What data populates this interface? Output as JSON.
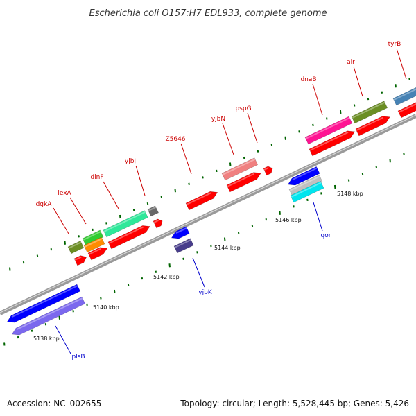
{
  "title": "Escherichia coli O157:H7 EDL933, complete genome",
  "footer": {
    "accession": "Accession: NC_002655",
    "summary": "Topology: circular; Length: 5,528,445 bp; Genes: 5,426"
  },
  "ticks": [
    {
      "label": "5138 kbp"
    },
    {
      "label": "5140 kbp"
    },
    {
      "label": "5142 kbp"
    },
    {
      "label": "5144 kbp"
    },
    {
      "label": "5146 kbp"
    },
    {
      "label": "5148 kbp"
    }
  ],
  "genes": [
    {
      "label": "dgkA",
      "strand": "forward",
      "color": "#6b8e23"
    },
    {
      "label": "lexA",
      "strand": "forward",
      "color": "#32cd32"
    },
    {
      "label": "dinF",
      "strand": "forward",
      "color": "#2fe89a"
    },
    {
      "label": "yjbJ",
      "strand": "forward",
      "color": "#696969"
    },
    {
      "label": "Z5646",
      "strand": "forward",
      "color": "#ff0000"
    },
    {
      "label": "yjbN",
      "strand": "forward",
      "color": "#f08080"
    },
    {
      "label": "pspG",
      "strand": "forward",
      "color": "#ff0000"
    },
    {
      "label": "dnaB",
      "strand": "forward",
      "color": "#ff1493"
    },
    {
      "label": "alr",
      "strand": "forward",
      "color": "#6b8e23"
    },
    {
      "label": "tyrB",
      "strand": "forward",
      "color": "#4682b4"
    },
    {
      "label": "yjbK",
      "strand": "reverse",
      "color": "#0000ff"
    },
    {
      "label": "qor",
      "strand": "reverse",
      "color": "#0000ff"
    },
    {
      "label": "plsB",
      "strand": "reverse",
      "color": "#0000ff"
    }
  ],
  "colors": {
    "cds": "#ff0000",
    "gene_forward_label": "#cc0000",
    "gene_reverse_label": "#0000cc",
    "tick_marks": "#006400",
    "backbone": "#888888",
    "orange_feature": "#ff8c00",
    "purple_feature": "#7b68ee",
    "cyan_feature": "#00e5ee",
    "slate_feature": "#483d8b",
    "silver_feature": "#c0c0c0"
  }
}
